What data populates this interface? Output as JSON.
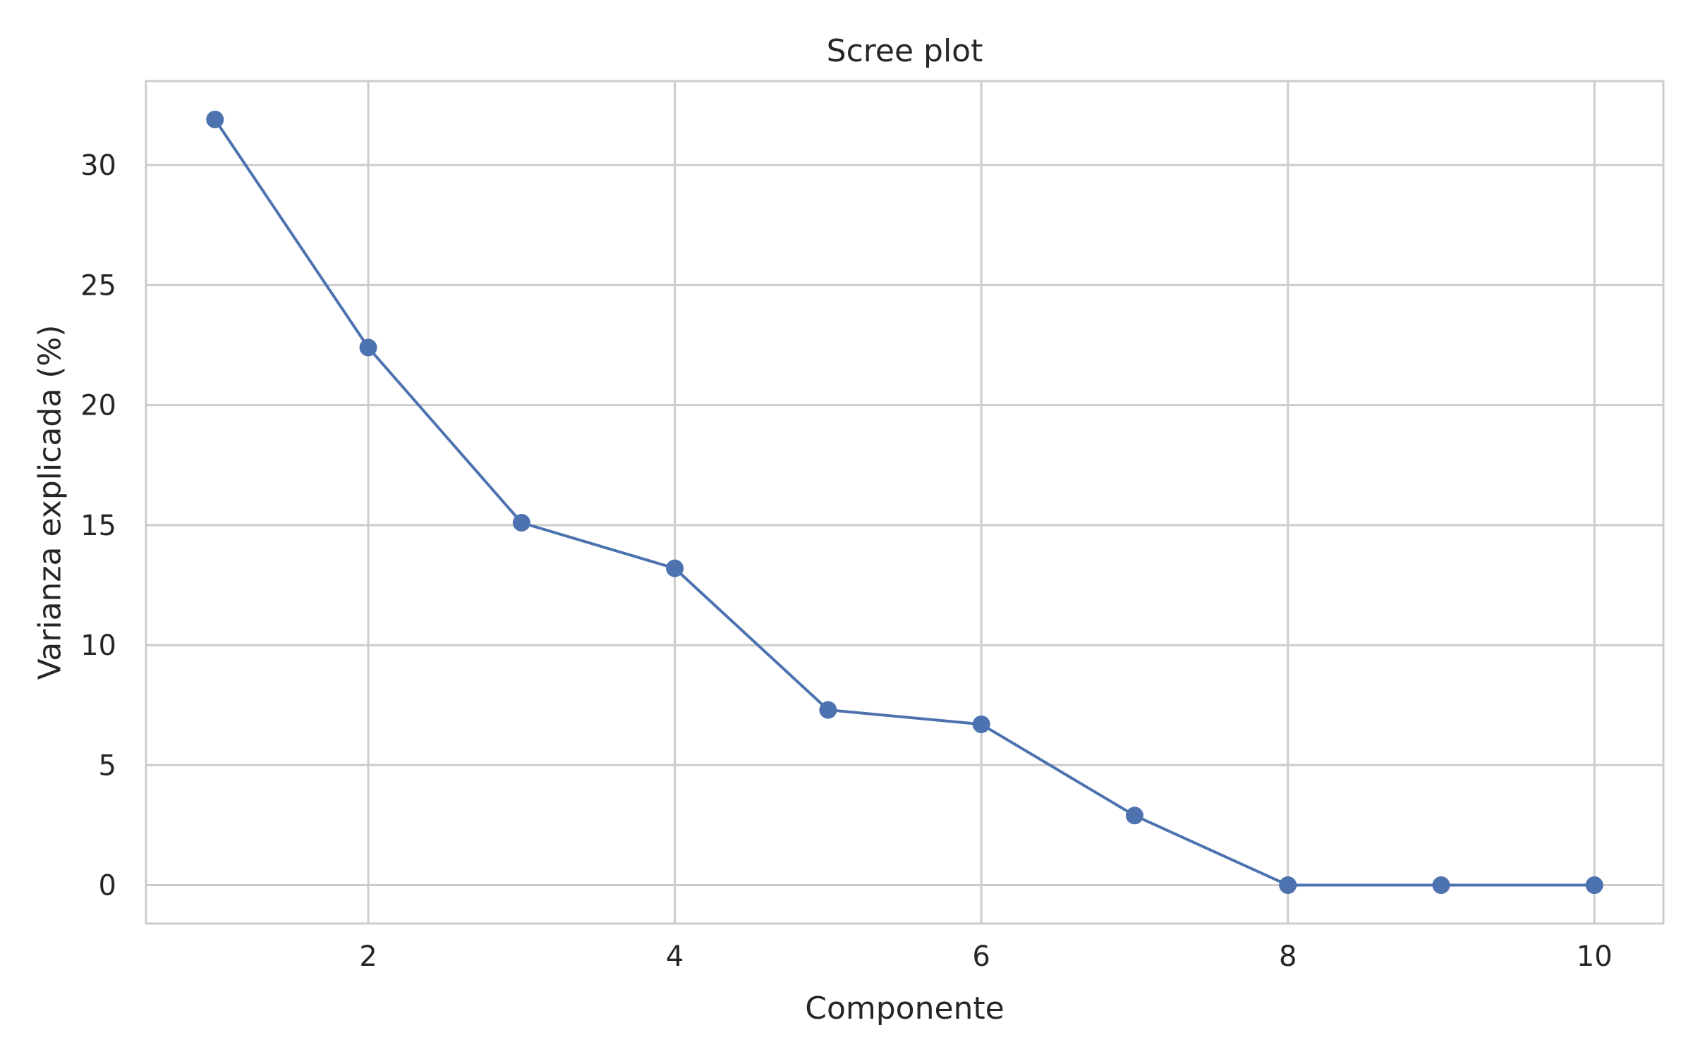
{
  "chart_data": {
    "type": "line",
    "title": "Scree plot",
    "xlabel": "Componente",
    "ylabel": "Varianza explicada (%)",
    "xlim": [
      0.55,
      10.45
    ],
    "ylim": [
      -1.6,
      33.5
    ],
    "xticks": [
      2,
      4,
      6,
      8,
      10
    ],
    "yticks": [
      0,
      5,
      10,
      15,
      20,
      25,
      30
    ],
    "grid": true,
    "series": [
      {
        "x": [
          1,
          2,
          3,
          4,
          5,
          6,
          7,
          8,
          9,
          10
        ],
        "y": [
          31.9,
          22.4,
          15.1,
          13.2,
          7.3,
          6.7,
          2.9,
          0.0,
          0.0,
          0.0
        ],
        "color": "#4C72B0",
        "marker": "circle"
      }
    ]
  }
}
